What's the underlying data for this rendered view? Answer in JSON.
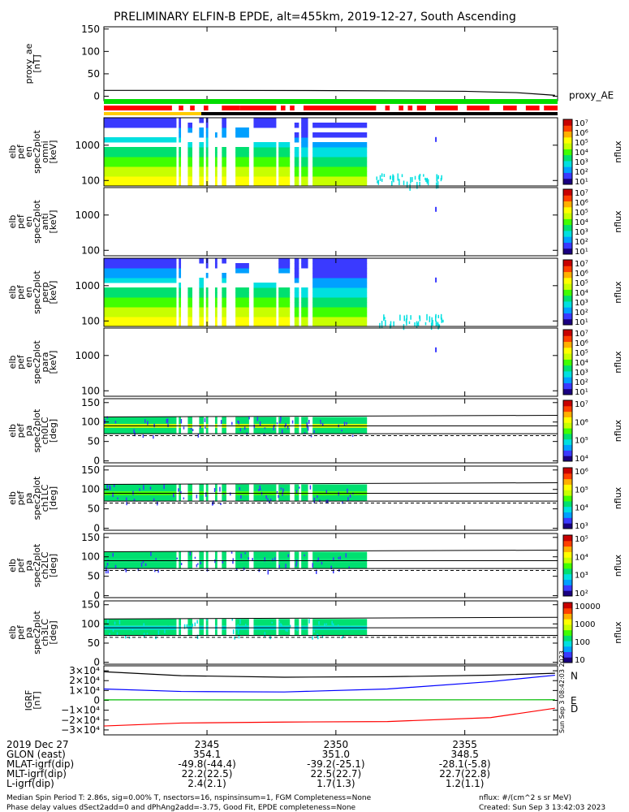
{
  "title": "PRELIMINARY ELFIN-B EPDE, alt=455km, 2019-12-27, South Ascending",
  "colors": {
    "line": "#000000",
    "bar_green": "#00dd00",
    "bar_red": "#ff0000",
    "bar_black": "#000000",
    "bar_yellow": "#ffcc00",
    "field_n": "#0000ff",
    "field_e": "#00bb00",
    "field_d": "#ff0000"
  },
  "colorbar_ramp": [
    "#1a0080",
    "#3a3aff",
    "#00a0ff",
    "#00e0e0",
    "#00e070",
    "#40ff00",
    "#c8ff00",
    "#ffff00",
    "#ffb000",
    "#ff4000",
    "#c80000"
  ],
  "panels": {
    "proxy": {
      "ylabel": [
        "proxy_ae",
        "[nT]"
      ],
      "yticks": [
        "150",
        "100",
        "50",
        "0"
      ],
      "series_label": "proxy_AE"
    },
    "spectrograms": [
      {
        "ylabel": [
          "elb",
          "pef",
          "en",
          "spec2plot",
          "omni",
          "[keV]"
        ],
        "yticks": [
          "1000",
          "100"
        ],
        "cbar_ticks": [
          "10⁷",
          "10⁶",
          "10⁵",
          "10⁴",
          "10³",
          "10²",
          "10¹"
        ],
        "cbar_label": "nflux"
      },
      {
        "ylabel": [
          "elb",
          "pef",
          "en",
          "spec2plot",
          "anti",
          "[keV]"
        ],
        "yticks": [
          "1000",
          "100"
        ],
        "cbar_ticks": [
          "10⁷",
          "10⁶",
          "10⁵",
          "10⁴",
          "10³",
          "10²",
          "10¹"
        ],
        "cbar_label": "nflux"
      },
      {
        "ylabel": [
          "elb",
          "pef",
          "en",
          "spec2plot",
          "perp",
          "[keV]"
        ],
        "yticks": [
          "1000",
          "100"
        ],
        "cbar_ticks": [
          "10⁷",
          "10⁶",
          "10⁵",
          "10⁴",
          "10³",
          "10²",
          "10¹"
        ],
        "cbar_label": "nflux"
      },
      {
        "ylabel": [
          "elb",
          "pef",
          "en",
          "spec2plot",
          "para",
          "[keV]"
        ],
        "yticks": [
          "1000",
          "100"
        ],
        "cbar_ticks": [
          "10⁷",
          "10⁶",
          "10⁵",
          "10⁴",
          "10³",
          "10²",
          "10¹"
        ],
        "cbar_label": "nflux"
      }
    ],
    "pitch_angle": [
      {
        "ylabel": [
          "elb",
          "pef",
          "pa",
          "spec2plot",
          "ch0LC",
          "[deg]"
        ],
        "yticks": [
          "150",
          "100",
          "50",
          "0"
        ],
        "cbar_ticks": [
          "10⁷",
          "10⁶",
          "10⁵",
          "10⁴"
        ],
        "cbar_label": "nflux"
      },
      {
        "ylabel": [
          "elb",
          "pef",
          "pa",
          "spec2plot",
          "ch1LC",
          "[deg]"
        ],
        "yticks": [
          "150",
          "100",
          "50",
          "0"
        ],
        "cbar_ticks": [
          "10⁶",
          "10⁵",
          "10⁴",
          "10³"
        ],
        "cbar_label": "nflux"
      },
      {
        "ylabel": [
          "elb",
          "pef",
          "pa",
          "spec2plot",
          "ch2LC",
          "[deg]"
        ],
        "yticks": [
          "150",
          "100",
          "50",
          "0"
        ],
        "cbar_ticks": [
          "10⁵",
          "10⁴",
          "10³",
          "10²"
        ],
        "cbar_label": "nflux"
      },
      {
        "ylabel": [
          "elb",
          "pef",
          "pa",
          "spec2plot",
          "ch3LC",
          "[deg]"
        ],
        "yticks": [
          "150",
          "100",
          "50",
          "0"
        ],
        "cbar_ticks": [
          "10000",
          "1000",
          "100",
          "10"
        ],
        "cbar_label": "nflux"
      }
    ],
    "field": {
      "ylabel": [
        "IGRF",
        "[nT]"
      ],
      "yticks": [
        "3×10⁴",
        "2×10⁴",
        "1×10⁴",
        "0",
        "−1×10⁴",
        "−2×10⁴",
        "−3×10⁴"
      ],
      "component_labels": [
        "N",
        "E",
        "D"
      ],
      "stamp": "Sun Sep  3 08:42:03 2023"
    }
  },
  "chart_data": {
    "type": "line",
    "x_ticks": [
      "2345",
      "2350",
      "2355"
    ],
    "proxy_ae": {
      "ylim": [
        -10,
        155
      ],
      "x": [
        2341,
        2345,
        2350,
        2355,
        2357,
        2358,
        2358.5
      ],
      "y": [
        13,
        13,
        12.5,
        11,
        8,
        4,
        2
      ]
    },
    "pitch_angle_lines": {
      "upper_deg": 113,
      "middle_deg": 90,
      "lower_deg": 70,
      "dashed_deg": 65
    },
    "igrf": {
      "ylim": [
        -35000,
        35000
      ],
      "series": [
        {
          "name": "N",
          "x": [
            2341,
            2344,
            2348,
            2352,
            2356,
            2358.5
          ],
          "y": [
            11500,
            9000,
            8500,
            11500,
            19000,
            25500
          ]
        },
        {
          "name": "E",
          "x": [
            2341,
            2348,
            2358.5
          ],
          "y": [
            500,
            400,
            600
          ]
        },
        {
          "name": "D",
          "x": [
            2341,
            2344,
            2348,
            2352,
            2356,
            2358.5
          ],
          "y": [
            -26000,
            -23000,
            -22000,
            -21500,
            -17500,
            -8000
          ]
        },
        {
          "name": "",
          "x": [
            2341,
            2344,
            2348,
            2352,
            2356,
            2358.5
          ],
          "y": [
            29000,
            25000,
            23500,
            24000,
            25500,
            27500
          ]
        }
      ]
    }
  },
  "footer": {
    "orbit_rows": [
      {
        "label": "2019 Dec 27",
        "values": [
          "2345",
          "2350",
          "2355"
        ]
      },
      {
        "label": "GLON (east)",
        "values": [
          "354.1",
          "351.0",
          "348.5"
        ]
      },
      {
        "label": "MLAT-igrf(dip)",
        "values": [
          "-49.8(-44.4)",
          "-39.2(-25.1)",
          "-28.1(-5.8)"
        ]
      },
      {
        "label": "MLT-igrf(dip)",
        "values": [
          "22.2(22.5)",
          "22.5(22.7)",
          "22.7(22.8)"
        ]
      },
      {
        "label": "L-igrf(dip)",
        "values": [
          "2.4(2.1)",
          "1.7(1.3)",
          "1.2(1.1)"
        ]
      }
    ],
    "notes_left": [
      "Median Spin Period T: 2.86s, sig=0.00% T, nsectors=16, nspinsinsum=1, FGM Completeness=None",
      "Phase delay values dSect2add=0 and dPhAng2add=-3.75, Good Fit, EPDE completeness=None"
    ],
    "notes_right": [
      "nflux: #/(cm^2 s sr MeV)",
      "Created: Sun Sep  3 13:42:03 2023"
    ]
  }
}
